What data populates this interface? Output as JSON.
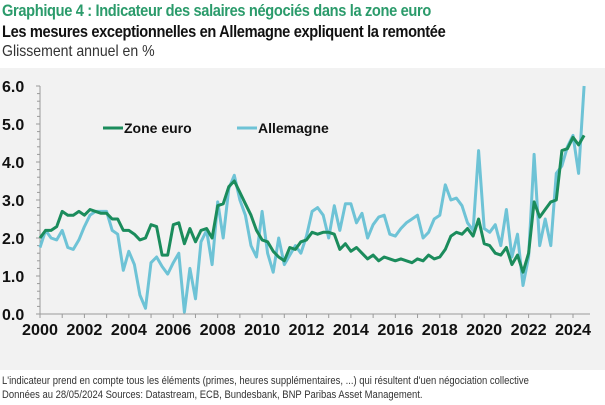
{
  "header": {
    "title": "Graphique 4 : Indicateur des salaires négociés dans la zone euro",
    "subtitle": "Les mesures exceptionnelles en Allemagne expliquent la remontée",
    "unit": "Glissement annuel en %"
  },
  "footer": {
    "note": "L'indicateur prend en compte tous les éléments (primes, heures supplémentaires, ...) qui résultent d'uen négociation collective",
    "sources": "Données au 28/05/2024 Sources: Datastream, ECB, Bundesbank, BNP Paribas Asset Management."
  },
  "colors": {
    "title": "#2b9b6b",
    "zone_euro": "#1b8c5c",
    "allemagne": "#6ec3d6",
    "panel": "#f2f2f2"
  },
  "chart_data": {
    "type": "line",
    "title": "Indicateur des salaires négociés dans la zone euro",
    "xlabel": "",
    "ylabel": "Glissement annuel en %",
    "xlim": [
      2000,
      2024.25
    ],
    "ylim": [
      0,
      6
    ],
    "x_ticks": [
      "2000",
      "2002",
      "2004",
      "2006",
      "2008",
      "2010",
      "2012",
      "2014",
      "2016",
      "2018",
      "2020",
      "2022",
      "2024"
    ],
    "y_ticks": [
      "0.0",
      "1.0",
      "2.0",
      "3.0",
      "4.0",
      "5.0",
      "6.0"
    ],
    "frequency": "quarterly",
    "x_start": 2000.0,
    "x_step": 0.25,
    "grid": false,
    "legend_position": "top-left",
    "series": [
      {
        "name": "Zone euro",
        "values": [
          2.0,
          2.2,
          2.2,
          2.3,
          2.7,
          2.6,
          2.6,
          2.7,
          2.6,
          2.75,
          2.7,
          2.65,
          2.65,
          2.5,
          2.5,
          2.2,
          2.2,
          2.1,
          1.95,
          2.0,
          2.35,
          2.3,
          1.55,
          1.55,
          2.35,
          2.4,
          1.85,
          2.25,
          1.9,
          2.2,
          2.25,
          2.0,
          2.85,
          2.9,
          3.35,
          3.5,
          3.2,
          2.9,
          2.6,
          2.2,
          1.95,
          1.9,
          1.65,
          1.5,
          1.4,
          1.75,
          1.7,
          1.9,
          1.95,
          2.15,
          2.1,
          2.15,
          2.15,
          2.1,
          1.7,
          1.85,
          1.65,
          1.75,
          1.6,
          1.45,
          1.55,
          1.4,
          1.5,
          1.45,
          1.4,
          1.45,
          1.4,
          1.35,
          1.45,
          1.4,
          1.55,
          1.45,
          1.5,
          1.7,
          2.05,
          2.15,
          2.1,
          2.25,
          2.05,
          2.5,
          1.85,
          1.8,
          1.6,
          1.55,
          1.75,
          1.3,
          1.55,
          1.1,
          1.6,
          2.95,
          2.55,
          2.75,
          2.95,
          3.0,
          4.3,
          4.35,
          4.65,
          4.45,
          4.7
        ]
      },
      {
        "name": "Allemagne",
        "values": [
          1.75,
          2.2,
          2.0,
          1.95,
          2.2,
          1.75,
          1.7,
          1.95,
          2.3,
          2.6,
          2.7,
          2.7,
          2.7,
          2.2,
          2.1,
          1.15,
          1.65,
          1.3,
          0.5,
          0.15,
          1.35,
          1.5,
          1.25,
          1.05,
          1.35,
          1.6,
          0.05,
          1.2,
          0.4,
          1.9,
          2.2,
          1.3,
          2.95,
          2.0,
          3.3,
          3.65,
          3.0,
          2.6,
          1.8,
          1.5,
          2.7,
          1.6,
          1.1,
          2.0,
          1.3,
          1.55,
          1.8,
          1.6,
          2.05,
          2.7,
          2.8,
          2.6,
          2.0,
          2.85,
          2.2,
          2.9,
          2.9,
          2.4,
          2.65,
          2.0,
          2.35,
          2.55,
          2.6,
          2.1,
          2.05,
          2.25,
          2.4,
          2.5,
          2.6,
          2.0,
          2.15,
          2.5,
          2.6,
          3.4,
          3.0,
          3.05,
          2.85,
          2.4,
          2.2,
          4.3,
          2.25,
          2.15,
          2.35,
          1.8,
          2.75,
          1.5,
          2.1,
          0.75,
          1.5,
          4.2,
          1.8,
          2.5,
          1.8,
          3.7,
          3.9,
          4.4,
          4.7,
          3.7,
          6.0
        ]
      }
    ]
  }
}
